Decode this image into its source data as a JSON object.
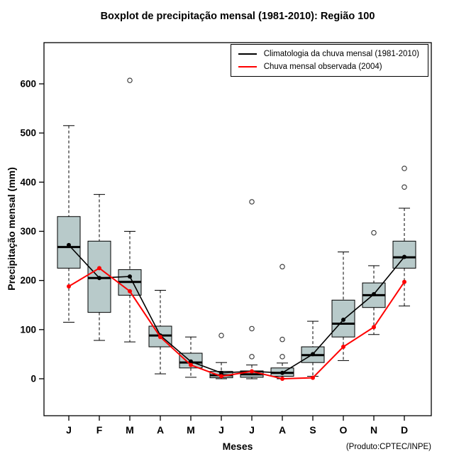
{
  "title": "Boxplot de precipitação mensal (1981-2010): Região 100",
  "axes": {
    "xlabel": "Meses",
    "ylabel": "Precipitação mensal (mm)"
  },
  "footnote": "(Produto:CPTEC/INPE)",
  "legend": {
    "items": [
      {
        "label": "Climatologia da chuva mensal (1981-2010)",
        "color": "#000000"
      },
      {
        "label": "Chuva mensal observada (2004)",
        "color": "#ff0000"
      }
    ]
  },
  "colors": {
    "box_fill": "#b8caca",
    "box_border": "#000000",
    "climatology": "#000000",
    "observed": "#ff0000"
  },
  "chart_data": {
    "type": "boxplot",
    "title": "Boxplot de precipitação mensal (1981-2010): Região 100",
    "xlabel": "Meses",
    "ylabel": "Precipitação mensal (mm)",
    "categories": [
      "J",
      "F",
      "M",
      "A",
      "M",
      "J",
      "J",
      "A",
      "S",
      "O",
      "N",
      "D"
    ],
    "yticks": [
      0,
      100,
      200,
      300,
      400,
      500,
      600
    ],
    "ylim": [
      -75,
      685
    ],
    "legend_position": "top-right",
    "grid": false,
    "boxes": [
      {
        "low": 115,
        "q1": 225,
        "median": 268,
        "q3": 330,
        "high": 515,
        "outliers": []
      },
      {
        "low": 78,
        "q1": 135,
        "median": 205,
        "q3": 280,
        "high": 375,
        "outliers": []
      },
      {
        "low": 75,
        "q1": 170,
        "median": 197,
        "q3": 222,
        "high": 300,
        "outliers": [
          607
        ]
      },
      {
        "low": 10,
        "q1": 65,
        "median": 88,
        "q3": 107,
        "high": 180,
        "outliers": []
      },
      {
        "low": 3,
        "q1": 22,
        "median": 33,
        "q3": 52,
        "high": 85,
        "outliers": []
      },
      {
        "low": 0,
        "q1": 2,
        "median": 7,
        "q3": 15,
        "high": 33,
        "outliers": [
          88
        ]
      },
      {
        "low": 0,
        "q1": 3,
        "median": 9,
        "q3": 16,
        "high": 28,
        "outliers": [
          360,
          102,
          45
        ]
      },
      {
        "low": 0,
        "q1": 5,
        "median": 12,
        "q3": 22,
        "high": 32,
        "outliers": [
          228,
          80,
          45
        ]
      },
      {
        "low": 5,
        "q1": 33,
        "median": 48,
        "q3": 65,
        "high": 117,
        "outliers": []
      },
      {
        "low": 37,
        "q1": 85,
        "median": 112,
        "q3": 160,
        "high": 258,
        "outliers": []
      },
      {
        "low": 90,
        "q1": 145,
        "median": 170,
        "q3": 195,
        "high": 230,
        "outliers": [
          297
        ]
      },
      {
        "low": 148,
        "q1": 225,
        "median": 247,
        "q3": 280,
        "high": 347,
        "outliers": [
          428,
          390
        ]
      }
    ],
    "series": [
      {
        "name": "Climatologia da chuva mensal (1981-2010)",
        "type": "line",
        "color": "#000000",
        "values": [
          272,
          205,
          208,
          88,
          35,
          12,
          15,
          12,
          50,
          120,
          172,
          248
        ]
      },
      {
        "name": "Chuva mensal observada (2004)",
        "type": "line",
        "color": "#ff0000",
        "values": [
          188,
          225,
          178,
          85,
          28,
          5,
          15,
          0,
          2,
          65,
          105,
          197
        ]
      }
    ]
  }
}
